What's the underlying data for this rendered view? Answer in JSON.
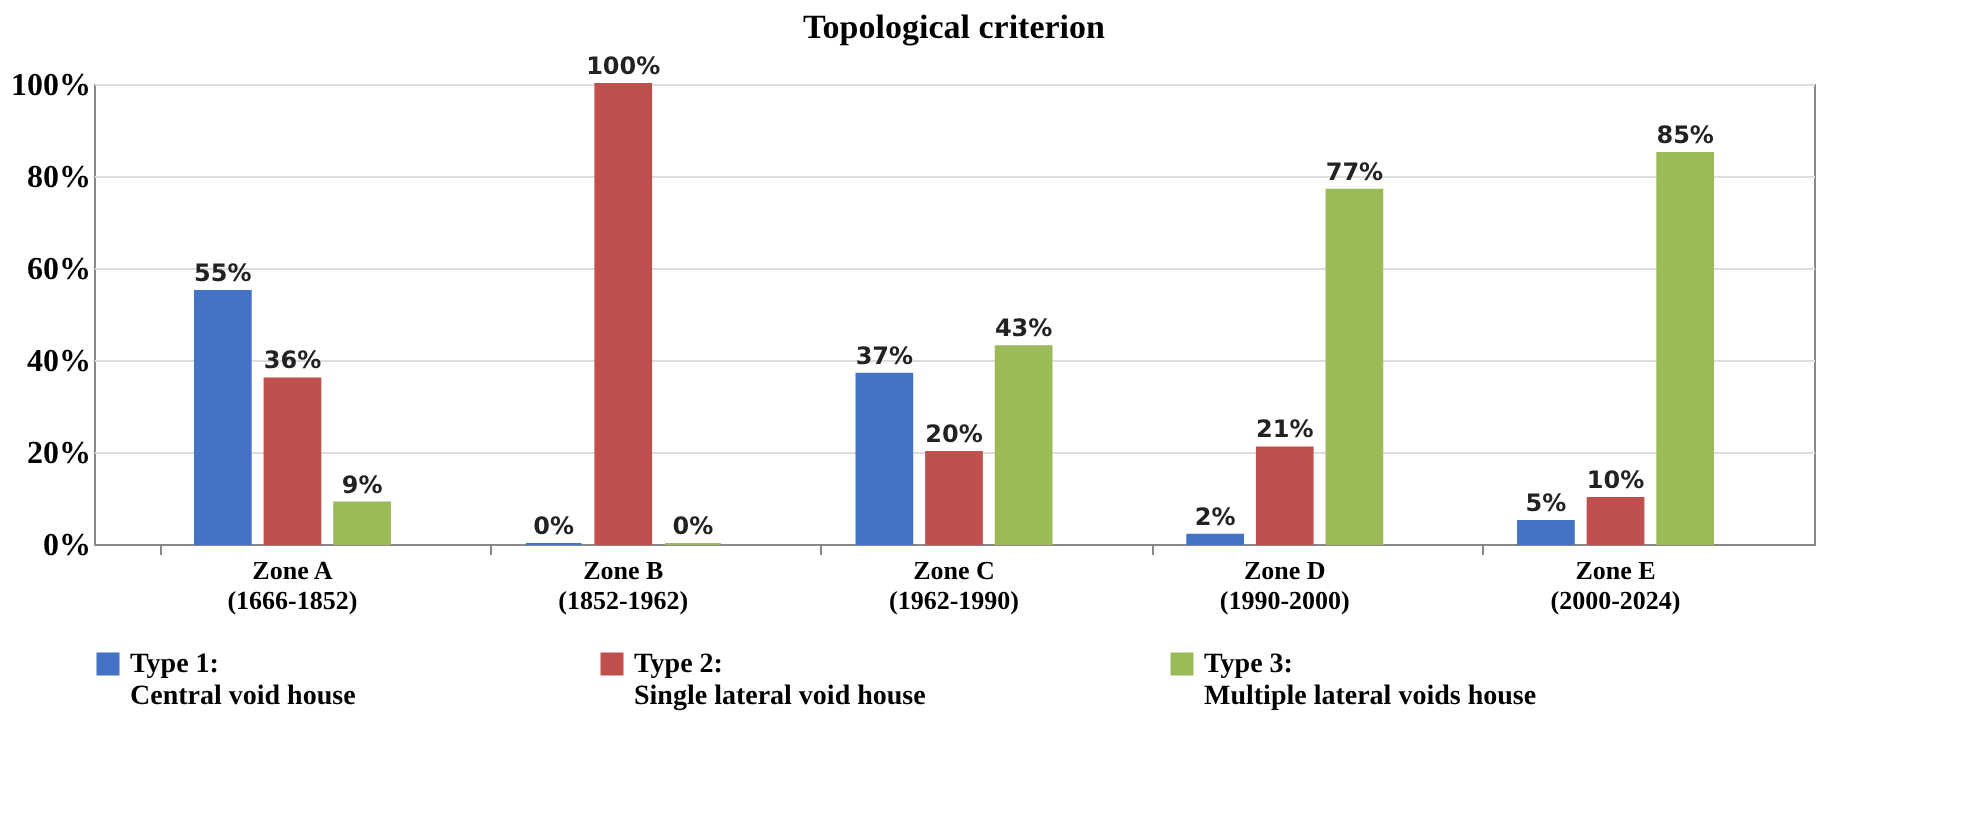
{
  "chart_data": {
    "type": "bar",
    "title": "Topological criterion",
    "categories": [
      "Zone A\n(1666-1852)",
      "Zone B\n(1852-1962)",
      "Zone C\n(1962-1990)",
      "Zone D\n(1990-2000)",
      "Zone E\n(2000-2024)"
    ],
    "series": [
      {
        "name": "Type 1:\nCentral void house",
        "color": "#4472c4",
        "values": [
          55,
          0,
          37,
          2,
          5
        ],
        "value_labels": [
          "55%",
          "0%",
          "37%",
          "2%",
          "5%"
        ]
      },
      {
        "name": "Type 2:\nSingle lateral void house",
        "color": "#c0504d",
        "values": [
          36,
          100,
          20,
          21,
          10
        ],
        "value_labels": [
          "36%",
          "100%",
          "20%",
          "21%",
          "10%"
        ]
      },
      {
        "name": "Type 3:\nMultiple lateral voids house",
        "color": "#9bbb59",
        "values": [
          9,
          0,
          43,
          77,
          85
        ],
        "value_labels": [
          "9%",
          "0%",
          "43%",
          "77%",
          "85%"
        ]
      }
    ],
    "ylim": [
      0,
      100
    ],
    "yticks": [
      {
        "value": 0,
        "label": "0%"
      },
      {
        "value": 20,
        "label": "20%"
      },
      {
        "value": 40,
        "label": "40%"
      },
      {
        "value": 60,
        "label": "60%"
      },
      {
        "value": 80,
        "label": "80%"
      },
      {
        "value": 100,
        "label": "100%"
      }
    ],
    "grid": "y",
    "legend": "bottom"
  }
}
